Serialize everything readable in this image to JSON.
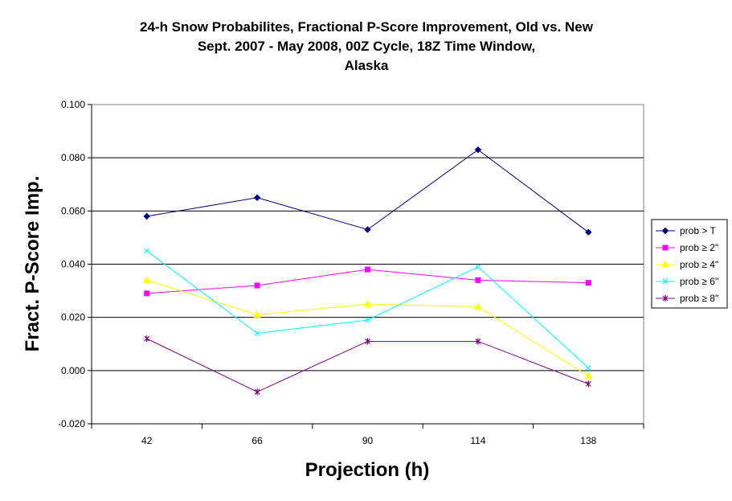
{
  "chart_data": {
    "type": "line",
    "title_lines": [
      "24-h Snow Probabilites, Fractional P-Score Improvement, Old vs. New",
      "Sept. 2007 - May 2008, 00Z Cycle, 18Z Time Window,",
      "Alaska"
    ],
    "xlabel": "Projection (h)",
    "ylabel": "Fract. P-Score Imp.",
    "categories": [
      "42",
      "66",
      "90",
      "114",
      "138"
    ],
    "ylim": [
      -0.02,
      0.1
    ],
    "yticks": [
      "-0.020",
      "0.000",
      "0.020",
      "0.040",
      "0.060",
      "0.080",
      "0.100"
    ],
    "ytick_values": [
      -0.02,
      0.0,
      0.02,
      0.04,
      0.06,
      0.08,
      0.1
    ],
    "grid": true,
    "legend_position": "right",
    "series": [
      {
        "name": "prob > T",
        "color": "#000080",
        "marker": "diamond",
        "values": [
          0.058,
          0.065,
          0.053,
          0.083,
          0.052
        ]
      },
      {
        "name": "prob ≥ 2\"",
        "color": "#ff00ff",
        "marker": "square",
        "values": [
          0.029,
          0.032,
          0.038,
          0.034,
          0.033
        ]
      },
      {
        "name": "prob ≥ 4\"",
        "color": "#ffff00",
        "marker": "triangle",
        "values": [
          0.034,
          0.021,
          0.025,
          0.024,
          -0.002
        ]
      },
      {
        "name": "prob ≥ 6\"",
        "color": "#00ffff",
        "marker": "x",
        "values": [
          0.045,
          0.014,
          0.019,
          0.039,
          0.001
        ]
      },
      {
        "name": "prob ≥ 8\"",
        "color": "#800080",
        "marker": "star",
        "values": [
          0.012,
          -0.008,
          0.011,
          0.011,
          -0.005
        ]
      }
    ]
  }
}
